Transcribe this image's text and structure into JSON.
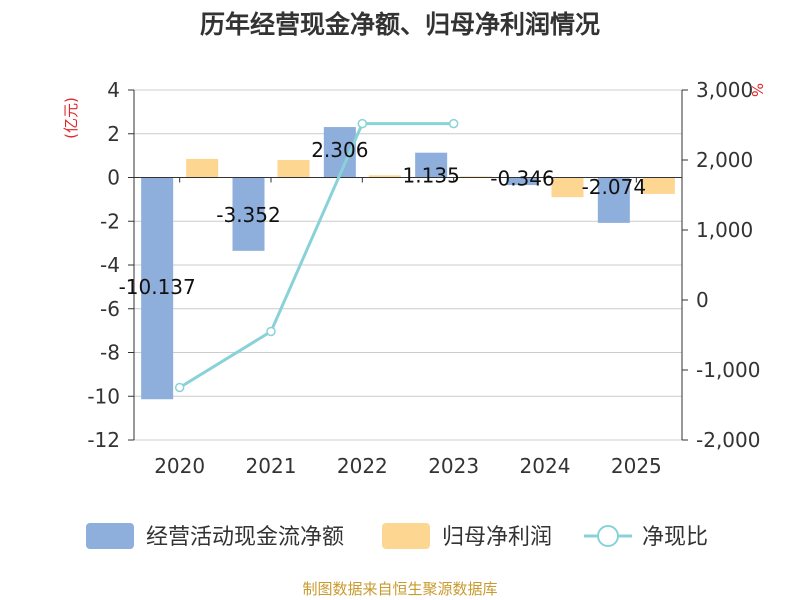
{
  "chart_data": {
    "type": "bar",
    "title": "历年经营现金净额、归母净利润情况",
    "categories": [
      "2020",
      "2021",
      "2022",
      "2023",
      "2024",
      "2025"
    ],
    "series": [
      {
        "name": "经营活动现金流净额",
        "kind": "bar",
        "axis": "left",
        "color": "#8eaedc",
        "values": [
          -10.137,
          -3.352,
          2.306,
          1.135,
          -0.346,
          -2.074
        ],
        "labels": [
          "-10.137",
          "-3.352",
          "2.306",
          "1.135",
          "-0.346",
          "-2.074"
        ]
      },
      {
        "name": "归母净利润",
        "kind": "bar",
        "axis": "left",
        "color": "#fdd692",
        "values": [
          0.85,
          0.8,
          0.1,
          0.05,
          -0.9,
          -0.75
        ]
      },
      {
        "name": "净现比",
        "kind": "line",
        "axis": "right",
        "color": "#88d2d8",
        "values": [
          -1250,
          -450,
          2520,
          2520,
          null,
          null
        ]
      }
    ],
    "left_axis": {
      "unit": "(亿元)",
      "min": -12,
      "max": 4,
      "ticks": [
        "4",
        "2",
        "0",
        "-2",
        "-4",
        "-6",
        "-8",
        "-10",
        "-12"
      ],
      "tick_values": [
        4,
        2,
        0,
        -2,
        -4,
        -6,
        -8,
        -10,
        -12
      ]
    },
    "right_axis": {
      "unit": "%",
      "min": -2000,
      "max": 3000,
      "ticks": [
        "3,000",
        "2,000",
        "1,000",
        "0",
        "-1,000",
        "-2,000"
      ],
      "tick_values": [
        3000,
        2000,
        1000,
        0,
        -1000,
        -2000
      ]
    },
    "legend": [
      "经营活动现金流净额",
      "归母净利润",
      "净现比"
    ],
    "legend_position": "bottom"
  },
  "footer": "制图数据来自恒生聚源数据库"
}
